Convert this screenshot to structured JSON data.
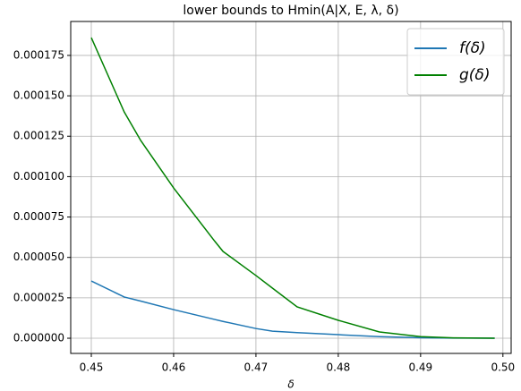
{
  "chart_data": {
    "type": "line",
    "title": "lower bounds to Hmin(A|X, E, λ, δ)",
    "x_label": "δ",
    "x": [
      0.45,
      0.454,
      0.456,
      0.46,
      0.465,
      0.466,
      0.47,
      0.472,
      0.475,
      0.48,
      0.485,
      0.49,
      0.494,
      0.499
    ],
    "series": [
      {
        "name": "f(δ)",
        "color": "#1f77b4",
        "values": [
          3.54e-05,
          2.55e-05,
          2.3e-05,
          1.77e-05,
          1.16e-05,
          1.04e-05,
          6e-06,
          4.4e-06,
          3.5e-06,
          2.2e-06,
          1e-06,
          3e-07,
          1e-07,
          0.0
        ]
      },
      {
        "name": "g(δ)",
        "color": "#008000",
        "values": [
          0.000186,
          0.00014,
          0.0001224,
          9.3e-05,
          6e-05,
          5.37e-05,
          3.88e-05,
          3.1e-05,
          1.94e-05,
          1.11e-05,
          3.9e-06,
          1e-06,
          2e-07,
          0.0
        ]
      }
    ],
    "xlim": [
      0.4475,
      0.501
    ],
    "ylim": [
      -9.4e-06,
      0.000196
    ],
    "xticks": [
      {
        "value": 0.45,
        "label": "0.45"
      },
      {
        "value": 0.46,
        "label": "0.46"
      },
      {
        "value": 0.47,
        "label": "0.47"
      },
      {
        "value": 0.48,
        "label": "0.48"
      },
      {
        "value": 0.49,
        "label": "0.49"
      },
      {
        "value": 0.5,
        "label": "0.50"
      }
    ],
    "yticks": [
      {
        "value": 0.0,
        "label": "0.000000"
      },
      {
        "value": 2.5e-05,
        "label": "0.000025"
      },
      {
        "value": 5e-05,
        "label": "0.000050"
      },
      {
        "value": 7.5e-05,
        "label": "0.000075"
      },
      {
        "value": 0.0001,
        "label": "0.000100"
      },
      {
        "value": 0.000125,
        "label": "0.000125"
      },
      {
        "value": 0.00015,
        "label": "0.000150"
      },
      {
        "value": 0.000175,
        "label": "0.000175"
      }
    ],
    "grid": true,
    "legend": "upper right"
  }
}
